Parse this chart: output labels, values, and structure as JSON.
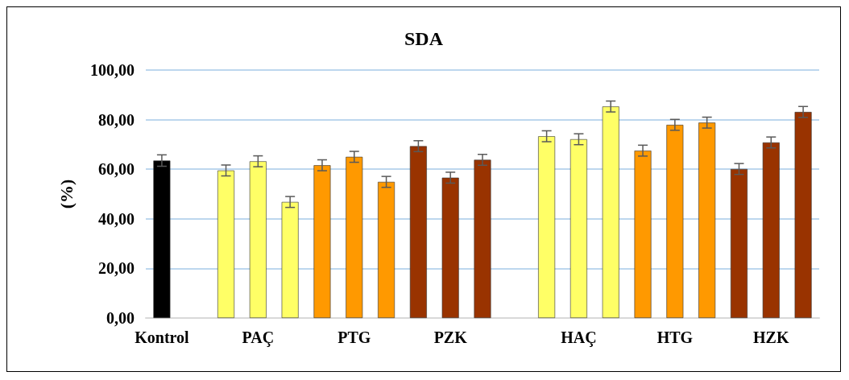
{
  "chart_data": {
    "type": "bar",
    "title": "SDA",
    "ylabel": "(%)",
    "categories": [
      "Kontrol",
      null,
      null,
      "PAÇ",
      null,
      null,
      "PTG",
      null,
      null,
      "PZK",
      null,
      null,
      null,
      "HAÇ",
      null,
      null,
      "HTG",
      null,
      null,
      "HZK",
      null
    ],
    "values": [
      63.5,
      null,
      59.5,
      63.2,
      46.8,
      61.6,
      65.0,
      54.9,
      69.3,
      56.6,
      63.8,
      null,
      73.3,
      72.1,
      85.3,
      67.5,
      77.9,
      78.8,
      60.1,
      70.8,
      83.1
    ],
    "colors": [
      "#000000",
      "#ffff66",
      "#ffff66",
      "#ffff66",
      "#ffff66",
      "#ff9900",
      "#ff9900",
      "#ff9900",
      "#993300",
      "#993300",
      "#993300",
      "#ffff66",
      "#ffff66",
      "#ffff66",
      "#ffff66",
      "#ff9900",
      "#ff9900",
      "#ff9900",
      "#993300",
      "#993300",
      "#993300"
    ],
    "errors": [
      2.3,
      null,
      2.2,
      2.2,
      2.2,
      2.2,
      2.2,
      2.2,
      2.2,
      2.2,
      2.2,
      null,
      2.2,
      2.2,
      2.2,
      2.2,
      2.2,
      2.2,
      2.2,
      2.2,
      2.2
    ],
    "ylim": [
      0,
      100
    ],
    "yticks": [
      {
        "value": 0,
        "label": "0,00"
      },
      {
        "value": 20,
        "label": "20,00"
      },
      {
        "value": 40,
        "label": "40,00"
      },
      {
        "value": 60,
        "label": "60,00"
      },
      {
        "value": 80,
        "label": "80,00"
      },
      {
        "value": 100,
        "label": "100,00"
      }
    ],
    "grid": "y"
  }
}
